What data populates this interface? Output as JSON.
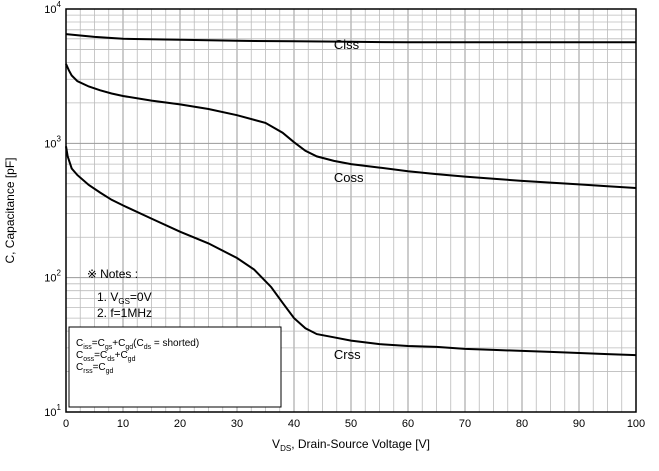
{
  "chart_data": {
    "type": "line",
    "title": "",
    "xlabel": {
      "pre": "V",
      "sub": "DS",
      "post": ", Drain-Source Voltage [V]"
    },
    "ylabel": "C, Capacitance [pF]",
    "x_scale": "linear",
    "y_scale": "log",
    "xlim": [
      0,
      100
    ],
    "ylim": [
      10,
      10000
    ],
    "grid": true,
    "x_ticks": [
      "0",
      "10",
      "20",
      "30",
      "40",
      "50",
      "60",
      "70",
      "80",
      "90",
      "100"
    ],
    "y_ticks": [
      {
        "base": "10",
        "exp": "1",
        "value": 10
      },
      {
        "base": "10",
        "exp": "2",
        "value": 100
      },
      {
        "base": "10",
        "exp": "3",
        "value": 1000
      },
      {
        "base": "10",
        "exp": "4",
        "value": 10000
      }
    ],
    "series": [
      {
        "name": "Ciss",
        "label_at": [
          47,
          5500
        ],
        "points": [
          [
            0,
            6500
          ],
          [
            5,
            6200
          ],
          [
            10,
            6000
          ],
          [
            20,
            5900
          ],
          [
            30,
            5800
          ],
          [
            40,
            5750
          ],
          [
            50,
            5700
          ],
          [
            60,
            5650
          ],
          [
            70,
            5650
          ],
          [
            80,
            5650
          ],
          [
            90,
            5650
          ],
          [
            100,
            5650
          ]
        ]
      },
      {
        "name": "Coss",
        "label_at": [
          47,
          560
        ],
        "points": [
          [
            0,
            3900
          ],
          [
            0.5,
            3500
          ],
          [
            1,
            3200
          ],
          [
            2,
            2900
          ],
          [
            4,
            2650
          ],
          [
            6,
            2480
          ],
          [
            8,
            2350
          ],
          [
            10,
            2250
          ],
          [
            15,
            2080
          ],
          [
            20,
            1950
          ],
          [
            25,
            1800
          ],
          [
            30,
            1620
          ],
          [
            35,
            1420
          ],
          [
            38,
            1200
          ],
          [
            40,
            1020
          ],
          [
            42,
            880
          ],
          [
            44,
            800
          ],
          [
            47,
            740
          ],
          [
            50,
            700
          ],
          [
            55,
            660
          ],
          [
            60,
            620
          ],
          [
            65,
            590
          ],
          [
            70,
            565
          ],
          [
            75,
            545
          ],
          [
            80,
            525
          ],
          [
            85,
            510
          ],
          [
            90,
            495
          ],
          [
            95,
            480
          ],
          [
            100,
            465
          ]
        ]
      },
      {
        "name": "Crss",
        "label_at": [
          47,
          27
        ],
        "points": [
          [
            0,
            950
          ],
          [
            0.3,
            800
          ],
          [
            1,
            650
          ],
          [
            2,
            580
          ],
          [
            4,
            490
          ],
          [
            6,
            430
          ],
          [
            8,
            380
          ],
          [
            10,
            345
          ],
          [
            15,
            275
          ],
          [
            20,
            220
          ],
          [
            25,
            180
          ],
          [
            30,
            140
          ],
          [
            33,
            115
          ],
          [
            36,
            85
          ],
          [
            38,
            65
          ],
          [
            40,
            50
          ],
          [
            42,
            42
          ],
          [
            44,
            38
          ],
          [
            47,
            36
          ],
          [
            50,
            34
          ],
          [
            55,
            32
          ],
          [
            60,
            31
          ],
          [
            65,
            30.5
          ],
          [
            70,
            29.5
          ],
          [
            75,
            29
          ],
          [
            80,
            28.5
          ],
          [
            85,
            28
          ],
          [
            90,
            27.5
          ],
          [
            95,
            27
          ],
          [
            100,
            26.5
          ]
        ]
      }
    ],
    "notes": {
      "symbol": "※",
      "heading": "Notes :",
      "items": [
        {
          "pre": "1. V",
          "sub": "GS",
          "post": "=0V"
        },
        {
          "pre": "2. f=1MHz",
          "sub": "",
          "post": ""
        }
      ]
    },
    "legend_box": {
      "lines": [
        [
          {
            "t": "C"
          },
          {
            "t": "iss",
            "sub": true
          },
          {
            "t": "=C"
          },
          {
            "t": "gs",
            "sub": true
          },
          {
            "t": "+C"
          },
          {
            "t": "gd",
            "sub": true
          },
          {
            "t": "(C"
          },
          {
            "t": "ds",
            "sub": true
          },
          {
            "t": " = shorted)"
          }
        ],
        [
          {
            "t": "C"
          },
          {
            "t": "oss",
            "sub": true
          },
          {
            "t": "=C"
          },
          {
            "t": "ds",
            "sub": true
          },
          {
            "t": "+C"
          },
          {
            "t": "gd",
            "sub": true
          }
        ],
        [
          {
            "t": "C"
          },
          {
            "t": "rss",
            "sub": true
          },
          {
            "t": "=C"
          },
          {
            "t": "gd",
            "sub": true
          }
        ]
      ]
    }
  }
}
